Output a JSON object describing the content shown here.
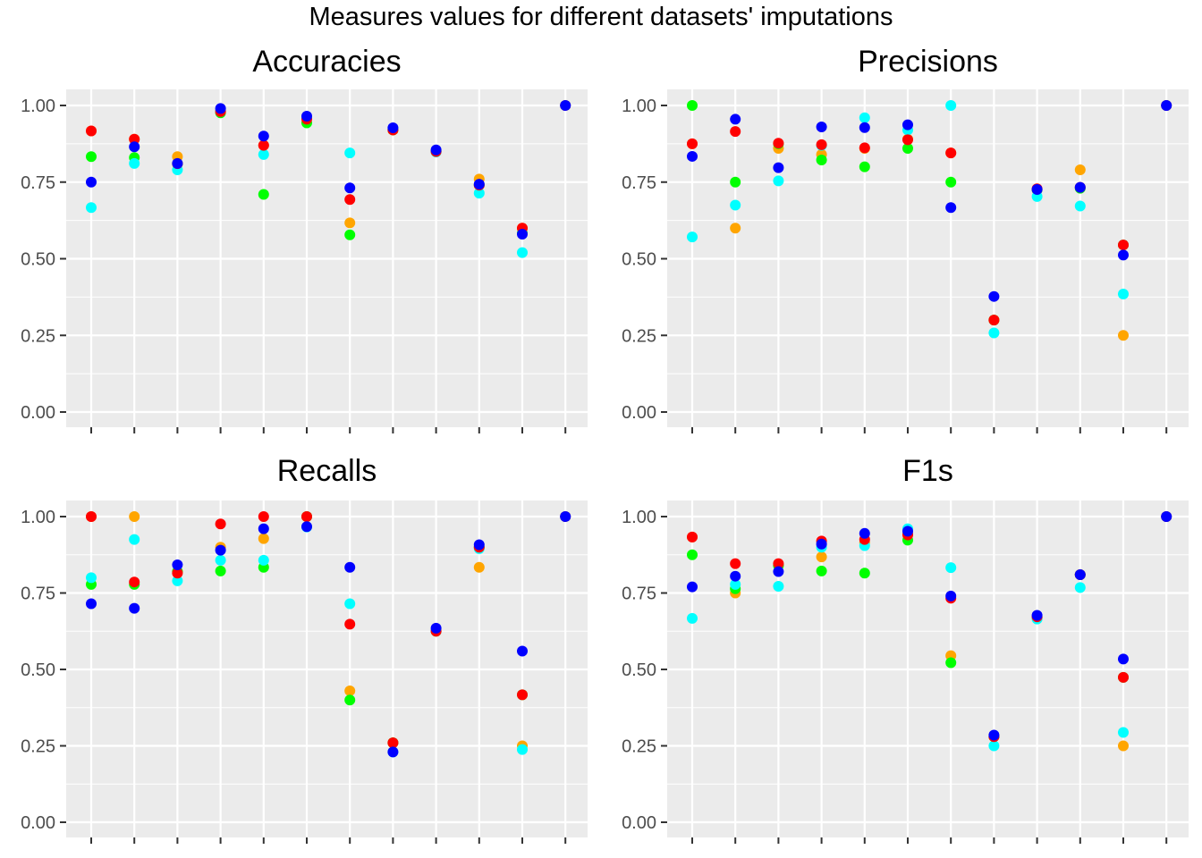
{
  "title": "Measures values for different datasets' imputations",
  "colors": {
    "panel_bg": "#ebebeb",
    "grid": "#ffffff",
    "tick_text": "#4d4d4d",
    "tick_mark": "#333333"
  },
  "chart_data": [
    {
      "type": "scatter",
      "title": "Accuracies",
      "ylim": [
        0,
        1
      ],
      "yticks": [
        "0.00",
        "0.25",
        "0.50",
        "0.75",
        "1.00"
      ],
      "n_categories": 12,
      "grid": true,
      "series": [
        {
          "color": "#ffa500",
          "values": [
            0.917,
            0.89,
            0.833,
            0.98,
            0.87,
            0.96,
            0.617,
            0.92,
            0.85,
            0.76,
            0.6,
            null
          ]
        },
        {
          "color": "#00ff00",
          "values": [
            0.833,
            0.83,
            0.81,
            0.976,
            0.71,
            0.943,
            0.578,
            0.92,
            0.85,
            0.74,
            0.583,
            null
          ]
        },
        {
          "color": "#00ffff",
          "values": [
            0.667,
            0.811,
            0.79,
            0.98,
            0.84,
            0.96,
            0.845,
            0.925,
            0.848,
            0.714,
            0.52,
            1.0
          ]
        },
        {
          "color": "#ff0000",
          "values": [
            0.917,
            0.89,
            0.81,
            0.98,
            0.87,
            0.955,
            0.693,
            0.92,
            0.85,
            0.74,
            0.6,
            1.0
          ]
        },
        {
          "color": "#0000ff",
          "values": [
            0.75,
            0.865,
            0.811,
            0.99,
            0.9,
            0.965,
            0.731,
            0.927,
            0.855,
            0.743,
            0.58,
            1.0
          ]
        }
      ]
    },
    {
      "type": "scatter",
      "title": "Precisions",
      "ylim": [
        0,
        1
      ],
      "yticks": [
        "0.00",
        "0.25",
        "0.50",
        "0.75",
        "1.00"
      ],
      "n_categories": 12,
      "grid": true,
      "series": [
        {
          "color": "#ffa500",
          "values": [
            0.875,
            0.6,
            0.86,
            0.84,
            0.86,
            0.89,
            0.845,
            0.3,
            0.725,
            0.79,
            0.25,
            null
          ]
        },
        {
          "color": "#00ff00",
          "values": [
            1.0,
            0.75,
            0.875,
            0.822,
            0.8,
            0.86,
            0.75,
            0.3,
            0.725,
            0.73,
            0.545,
            null
          ]
        },
        {
          "color": "#00ffff",
          "values": [
            0.571,
            0.675,
            0.754,
            0.87,
            0.96,
            0.92,
            1.0,
            0.258,
            0.703,
            0.672,
            0.385,
            1.0
          ]
        },
        {
          "color": "#ff0000",
          "values": [
            0.875,
            0.915,
            0.877,
            0.872,
            0.862,
            0.888,
            0.845,
            0.3,
            0.728,
            0.733,
            0.545,
            1.0
          ]
        },
        {
          "color": "#0000ff",
          "values": [
            0.834,
            0.955,
            0.797,
            0.93,
            0.928,
            0.937,
            0.667,
            0.377,
            0.726,
            0.733,
            0.512,
            1.0
          ]
        }
      ]
    },
    {
      "type": "scatter",
      "title": "Recalls",
      "ylim": [
        0,
        1
      ],
      "yticks": [
        "0.00",
        "0.25",
        "0.50",
        "0.75",
        "1.00"
      ],
      "n_categories": 12,
      "grid": true,
      "series": [
        {
          "color": "#ffa500",
          "values": [
            1.0,
            1.0,
            0.82,
            0.9,
            0.928,
            1.0,
            0.43,
            0.26,
            0.625,
            0.834,
            0.25,
            null
          ]
        },
        {
          "color": "#00ff00",
          "values": [
            0.778,
            0.778,
            0.82,
            0.822,
            0.834,
            1.0,
            0.4,
            0.26,
            0.625,
            0.9,
            0.417,
            null
          ]
        },
        {
          "color": "#00ffff",
          "values": [
            0.8,
            0.925,
            0.79,
            0.857,
            0.857,
            0.966,
            0.715,
            0.23,
            0.625,
            0.895,
            0.238,
            1.0
          ]
        },
        {
          "color": "#ff0000",
          "values": [
            1.0,
            0.786,
            0.815,
            0.976,
            1.0,
            1.0,
            0.648,
            0.26,
            0.625,
            0.9,
            0.417,
            1.0
          ]
        },
        {
          "color": "#0000ff",
          "values": [
            0.715,
            0.7,
            0.842,
            0.89,
            0.96,
            0.967,
            0.834,
            0.23,
            0.635,
            0.908,
            0.56,
            1.0
          ]
        }
      ]
    },
    {
      "type": "scatter",
      "title": "F1s",
      "ylim": [
        0,
        1
      ],
      "yticks": [
        "0.00",
        "0.25",
        "0.50",
        "0.75",
        "1.00"
      ],
      "n_categories": 12,
      "grid": true,
      "series": [
        {
          "color": "#ffa500",
          "values": [
            0.933,
            0.75,
            0.84,
            0.868,
            0.915,
            0.945,
            0.545,
            0.28,
            0.67,
            0.81,
            0.25,
            null
          ]
        },
        {
          "color": "#00ff00",
          "values": [
            0.875,
            0.764,
            0.84,
            0.822,
            0.815,
            0.923,
            0.522,
            0.28,
            0.67,
            0.81,
            0.474,
            null
          ]
        },
        {
          "color": "#00ffff",
          "values": [
            0.667,
            0.778,
            0.772,
            0.9,
            0.905,
            0.96,
            0.833,
            0.25,
            0.665,
            0.768,
            0.294,
            1.0
          ]
        },
        {
          "color": "#ff0000",
          "values": [
            0.933,
            0.846,
            0.846,
            0.92,
            0.925,
            0.94,
            0.733,
            0.28,
            0.672,
            0.81,
            0.474,
            1.0
          ]
        },
        {
          "color": "#0000ff",
          "values": [
            0.77,
            0.805,
            0.82,
            0.91,
            0.945,
            0.952,
            0.74,
            0.285,
            0.677,
            0.81,
            0.534,
            1.0
          ]
        }
      ]
    }
  ]
}
